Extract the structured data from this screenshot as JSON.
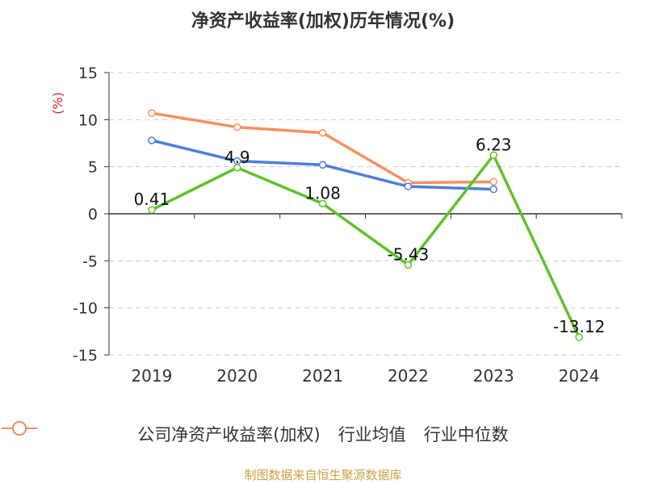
{
  "chart_data": {
    "type": "line",
    "title": "净资产收益率(加权)历年情况(%)",
    "ylabel": "(%)",
    "xlabel": "",
    "categories": [
      "2019",
      "2020",
      "2021",
      "2022",
      "2023",
      "2024"
    ],
    "ylim": [
      -15,
      15
    ],
    "yticks": [
      15,
      10,
      5,
      0,
      -5,
      -10,
      -15
    ],
    "grid": true,
    "legend_position": "bottom",
    "series": [
      {
        "name": "公司净资产收益率(加权)",
        "color": "#5fc32a",
        "values": [
          0.41,
          4.9,
          1.08,
          -5.43,
          6.23,
          -13.12
        ],
        "data_labels": [
          "0.41",
          "4.9",
          "1.08",
          "-5.43",
          "6.23",
          "-13.12"
        ]
      },
      {
        "name": "行业均值",
        "color": "#4f7fd8",
        "values": [
          7.8,
          5.6,
          5.2,
          2.9,
          2.6,
          null
        ]
      },
      {
        "name": "行业中位数",
        "color": "#f59060",
        "values": [
          10.7,
          9.2,
          8.6,
          3.3,
          3.4,
          null
        ]
      }
    ]
  },
  "source": "制图数据来自恒生聚源数据库"
}
